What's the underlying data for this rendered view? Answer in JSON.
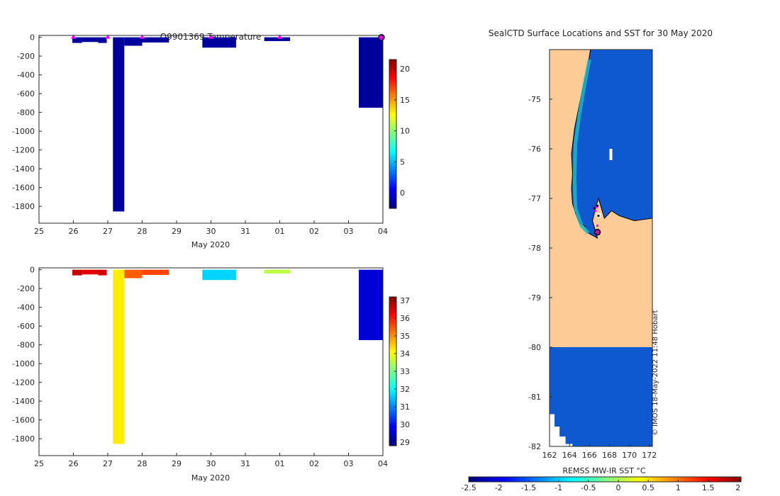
{
  "chart_data": [
    {
      "id": "top",
      "type": "bar",
      "title": "Q9901369  Temperature",
      "xlabel": "May 2020",
      "ylabel": "",
      "xticks": [
        "25",
        "26",
        "27",
        "28",
        "29",
        "30",
        "31",
        "01",
        "02",
        "03",
        "04"
      ],
      "yticks": [
        0,
        -200,
        -400,
        -600,
        -800,
        -1000,
        -1200,
        -1400,
        -1600,
        -1800
      ],
      "ylim": [
        -1980,
        20
      ],
      "colorbar": {
        "ticks": [
          20,
          15,
          10,
          5,
          0
        ],
        "range": [
          -2.5,
          21.5
        ]
      },
      "profiles": [
        {
          "start": 0.97,
          "end": 1.25,
          "depth": -60,
          "value": -1.8
        },
        {
          "start": 1.25,
          "end": 1.72,
          "depth": -50,
          "value": -1.8
        },
        {
          "start": 1.72,
          "end": 1.97,
          "depth": -60,
          "value": -1.8
        },
        {
          "start": 2.15,
          "end": 2.48,
          "depth": -1855,
          "value": -1.8
        },
        {
          "start": 2.48,
          "end": 3.0,
          "depth": -90,
          "value": -1.8
        },
        {
          "start": 3.0,
          "end": 3.78,
          "depth": -55,
          "value": -1.8
        },
        {
          "start": 4.75,
          "end": 5.73,
          "depth": -110,
          "value": -1.8
        },
        {
          "start": 6.55,
          "end": 7.3,
          "depth": -40,
          "value": -1.8
        },
        {
          "start": 9.3,
          "end": 10.05,
          "depth": -750,
          "value": -1.8
        }
      ],
      "markers_x": [
        1.0,
        2.0,
        3.0,
        5.0,
        7.0,
        10.0
      ]
    },
    {
      "id": "bottom",
      "type": "bar",
      "title": "",
      "xlabel": "May 2020",
      "ylabel": "",
      "xticks": [
        "25",
        "26",
        "27",
        "28",
        "29",
        "30",
        "31",
        "01",
        "02",
        "03",
        "04"
      ],
      "yticks": [
        0,
        -200,
        -400,
        -600,
        -800,
        -1000,
        -1200,
        -1400,
        -1600,
        -1800
      ],
      "ylim": [
        -1980,
        20
      ],
      "colorbar": {
        "ticks": [
          37,
          36,
          35,
          34,
          33,
          32,
          31,
          30,
          29
        ],
        "range": [
          28.8,
          37.2
        ]
      },
      "profiles": [
        {
          "start": 0.97,
          "end": 1.25,
          "depth": -60,
          "value": 36.6
        },
        {
          "start": 1.25,
          "end": 1.72,
          "depth": -50,
          "value": 36.4
        },
        {
          "start": 1.72,
          "end": 1.97,
          "depth": -60,
          "value": 36.5
        },
        {
          "start": 2.15,
          "end": 2.48,
          "depth": -1855,
          "value": 34.2
        },
        {
          "start": 2.48,
          "end": 3.0,
          "depth": -90,
          "value": 35.4
        },
        {
          "start": 3.0,
          "end": 3.78,
          "depth": -55,
          "value": 35.6
        },
        {
          "start": 4.75,
          "end": 5.73,
          "depth": -110,
          "value": 31.6
        },
        {
          "start": 6.55,
          "end": 7.3,
          "depth": -40,
          "value": 33.5
        },
        {
          "start": 9.3,
          "end": 10.05,
          "depth": -750,
          "value": 29.5
        }
      ]
    },
    {
      "id": "map",
      "type": "heatmap",
      "title": "SealCTD Surface Locations and SST for 30 May 2020",
      "colorbar_label": "REMSS MW-IR SST °C",
      "xticks": [
        "162",
        "164",
        "166",
        "168",
        "170",
        "172"
      ],
      "yticks": [
        "-75",
        "-76",
        "-77",
        "-78",
        "-79",
        "-80",
        "-81",
        "-82"
      ],
      "xlim": [
        162,
        172.3
      ],
      "ylim": [
        -82,
        -74
      ],
      "colorbar_ticks": [
        "-2.5",
        "-2",
        "-1.5",
        "-1",
        "-0.5",
        "0",
        "0.5",
        "1",
        "1.5",
        "2"
      ],
      "colorbar_range": [
        -2.5,
        2.05
      ],
      "sst_value": -1.8,
      "credit": "© IMOS 18-May-2022 11:48 Hobart",
      "track": [
        [
          166.5,
          -77.2
        ],
        [
          166.7,
          -77.18
        ],
        [
          166.8,
          -77.15
        ],
        [
          166.6,
          -77.25
        ],
        [
          166.9,
          -77.35
        ],
        [
          166.8,
          -77.55
        ],
        [
          166.8,
          -77.65
        ]
      ],
      "current_location": [
        166.8,
        -77.68
      ]
    }
  ],
  "colors": {
    "land": "#fccb96",
    "ocean": "#0e59d0",
    "marker_magenta": "#ff00ff",
    "marker_current": "#b4199b"
  }
}
